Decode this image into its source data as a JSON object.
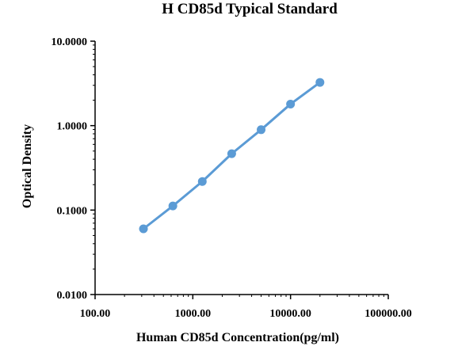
{
  "chart_data": {
    "type": "line",
    "title": "H CD85d Typical Standard",
    "xlabel": "Human CD85d Concentration(pg/ml)",
    "ylabel": "Optical Density",
    "x_scale": "log",
    "y_scale": "log",
    "xlim": [
      100,
      100000
    ],
    "ylim": [
      0.01,
      10
    ],
    "x_tick_labels": [
      "100.00",
      "1000.00",
      "10000.00",
      "100000.00"
    ],
    "y_tick_labels": [
      "0.0100",
      "0.1000",
      "1.0000",
      "10.0000"
    ],
    "grid": false,
    "line_color": "#5b9bd5",
    "series": [
      {
        "x": [
          312.5,
          625,
          1250,
          2500,
          5000,
          10000,
          20000
        ],
        "y": [
          0.06,
          0.112,
          0.218,
          0.465,
          0.895,
          1.8,
          3.25
        ]
      }
    ]
  }
}
